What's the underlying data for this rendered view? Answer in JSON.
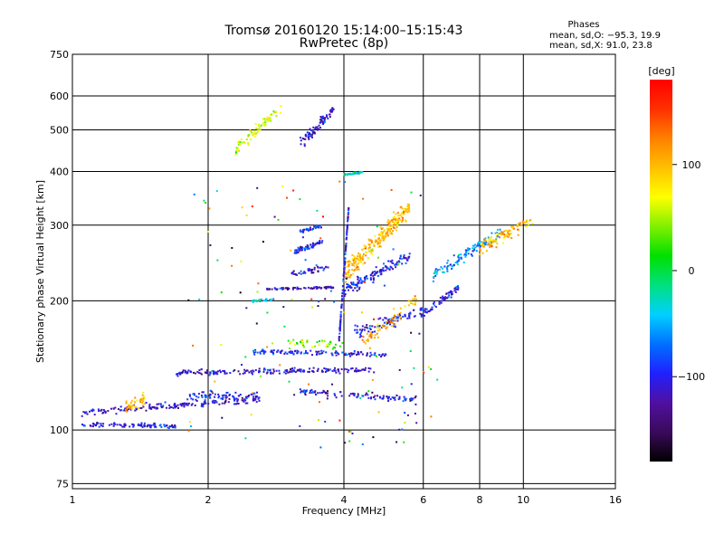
{
  "chart_data": {
    "type": "scatter",
    "title": "Tromsø 20160120 15:14:00–15:15:43",
    "subtitle": "RwPretec (8p)",
    "xlabel": "Frequency [MHz]",
    "ylabel": "Stationary phase Virtual Height [km]",
    "x_scale": "log",
    "y_scale": "log",
    "xlim": [
      1,
      16
    ],
    "ylim": [
      73,
      750
    ],
    "x_ticks": [
      1,
      2,
      4,
      6,
      8,
      10,
      16
    ],
    "x_tick_labels": [
      "1",
      "2",
      "4",
      "6",
      "8",
      "10",
      "16"
    ],
    "y_ticks": [
      75,
      100,
      200,
      300,
      400,
      500,
      600,
      750
    ],
    "y_tick_labels": [
      "75",
      "100",
      "200",
      "300",
      "400",
      "500",
      "600",
      "750"
    ],
    "grid": true,
    "phase_box": {
      "heading": "Phases",
      "line_o": "mean, sd,O: −95.3, 19.9",
      "line_x": "mean, sd,X:  91.0, 23.8"
    },
    "colorbar": {
      "label": "[deg]",
      "range": [
        -180,
        180
      ],
      "ticks": [
        100,
        0,
        -100
      ],
      "tick_labels": [
        "100",
        "0",
        "−100"
      ],
      "colormap": [
        "#000000",
        "#3a0a5a",
        "#5010a0",
        "#2020ff",
        "#0070ff",
        "#00d0ff",
        "#00e080",
        "#00e000",
        "#80f000",
        "#ffff00",
        "#ffc000",
        "#ff8000",
        "#ff3000",
        "#ff0000"
      ]
    },
    "clusters": [
      {
        "name": "trace-1",
        "x": [
          1.05,
          1.7
        ],
        "y": [
          103,
          102
        ],
        "spread": 2,
        "phase": -105,
        "n": 90
      },
      {
        "name": "trace-2",
        "x": [
          1.05,
          2.6
        ],
        "y": [
          110,
          118
        ],
        "spread": 3,
        "phase": -110,
        "n": 170
      },
      {
        "name": "trace-3",
        "x": [
          1.3,
          1.45
        ],
        "y": [
          112,
          118
        ],
        "spread": 6,
        "phase": 100,
        "n": 40
      },
      {
        "name": "trace-4",
        "x": [
          1.8,
          2.6
        ],
        "y": [
          120,
          120
        ],
        "spread": 4,
        "phase": -95,
        "n": 70
      },
      {
        "name": "trace-5",
        "x": [
          1.7,
          4.7
        ],
        "y": [
          136,
          138
        ],
        "spread": 3,
        "phase": -110,
        "n": 190
      },
      {
        "name": "trace-6",
        "x": [
          2.5,
          5.0
        ],
        "y": [
          152,
          150
        ],
        "spread": 3,
        "phase": -100,
        "n": 120
      },
      {
        "name": "trace-7",
        "x": [
          3.0,
          4.0
        ],
        "y": [
          160,
          158
        ],
        "spread": 6,
        "phase": 40,
        "n": 40
      },
      {
        "name": "trace-8",
        "x": [
          3.2,
          5.8
        ],
        "y": [
          123,
          118
        ],
        "spread": 3,
        "phase": -110,
        "n": 100
      },
      {
        "name": "trace-9",
        "x": [
          2.5,
          2.8
        ],
        "y": [
          200,
          201
        ],
        "spread": 2,
        "phase": -40,
        "n": 25
      },
      {
        "name": "trace-10",
        "x": [
          2.7,
          3.8
        ],
        "y": [
          213,
          215
        ],
        "spread": 2,
        "phase": -120,
        "n": 70
      },
      {
        "name": "trace-11",
        "x": [
          3.0,
          3.7
        ],
        "y": [
          230,
          240
        ],
        "spread": 5,
        "phase": -110,
        "n": 40
      },
      {
        "name": "trace-12",
        "x": [
          3.1,
          3.6
        ],
        "y": [
          260,
          275
        ],
        "spread": 5,
        "phase": -95,
        "n": 60
      },
      {
        "name": "trace-13",
        "x": [
          3.2,
          3.6
        ],
        "y": [
          290,
          300
        ],
        "spread": 4,
        "phase": -100,
        "n": 40
      },
      {
        "name": "trace-14",
        "x": [
          4.0,
          5.6
        ],
        "y": [
          210,
          255
        ],
        "spread": 10,
        "phase": -100,
        "n": 130
      },
      {
        "name": "trace-15",
        "x": [
          4.0,
          5.6
        ],
        "y": [
          230,
          330
        ],
        "spread": 20,
        "phase": 100,
        "n": 260
      },
      {
        "name": "trace-16",
        "x": [
          3.9,
          4.1
        ],
        "y": [
          160,
          330
        ],
        "spread": 5,
        "phase": -100,
        "n": 110
      },
      {
        "name": "trace-17",
        "x": [
          4.2,
          6.0
        ],
        "y": [
          168,
          190
        ],
        "spread": 8,
        "phase": -100,
        "n": 90
      },
      {
        "name": "trace-18",
        "x": [
          5.9,
          7.2
        ],
        "y": [
          185,
          215
        ],
        "spread": 6,
        "phase": -100,
        "n": 70
      },
      {
        "name": "trace-19",
        "x": [
          6.3,
          9.0
        ],
        "y": [
          230,
          290
        ],
        "spread": 12,
        "phase": -60,
        "n": 110
      },
      {
        "name": "trace-20",
        "x": [
          8.0,
          10.5
        ],
        "y": [
          265,
          310
        ],
        "spread": 15,
        "phase": 100,
        "n": 100
      },
      {
        "name": "trace-21",
        "x": [
          4.0,
          4.4
        ],
        "y": [
          393,
          398
        ],
        "spread": 3,
        "phase": -40,
        "n": 40
      },
      {
        "name": "trace-22",
        "x": [
          2.3,
          2.9
        ],
        "y": [
          450,
          560
        ],
        "spread": 25,
        "phase": 60,
        "n": 80
      },
      {
        "name": "trace-23",
        "x": [
          3.2,
          3.8
        ],
        "y": [
          460,
          560
        ],
        "spread": 25,
        "phase": -110,
        "n": 80
      },
      {
        "name": "trace-24",
        "x": [
          4.4,
          5.8
        ],
        "y": [
          160,
          200
        ],
        "spread": 10,
        "phase": 110,
        "n": 60
      },
      {
        "name": "trace-25",
        "x": [
          1.8,
          6.5
        ],
        "y": [
          90,
          380
        ],
        "spread": 0,
        "phase": 0,
        "n": 140,
        "scatter": true
      }
    ]
  }
}
